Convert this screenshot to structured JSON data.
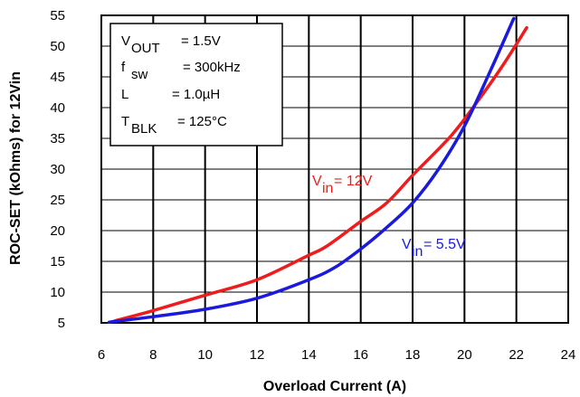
{
  "chart_data": {
    "type": "line",
    "xlabel": "Overload Current (A)",
    "ylabel": "ROC-SET (kOhms) for 12Vin",
    "xlim": [
      6,
      24
    ],
    "ylim": [
      5,
      55
    ],
    "xticks": [
      "6",
      "8",
      "10",
      "12",
      "14",
      "16",
      "18",
      "20",
      "22",
      "24"
    ],
    "yticks": [
      "5",
      "10",
      "15",
      "20",
      "25",
      "30",
      "35",
      "40",
      "45",
      "50",
      "55"
    ],
    "grid": true,
    "conditions": [
      {
        "main": "V",
        "sub": "OUT",
        "rest": "= 1.5V"
      },
      {
        "main": "f",
        "sub": "sw",
        "rest": "= 300kHz"
      },
      {
        "main": "L",
        "sub": "",
        "rest": "= 1.0µH"
      },
      {
        "main": "T",
        "sub": "BLK",
        "rest": "= 125°C"
      }
    ],
    "series": [
      {
        "label_main": "V",
        "label_sub": "in",
        "label_rest": " = 12V",
        "color": "#ee1c1c",
        "x": [
          6.5,
          8,
          10,
          12,
          14,
          14.7,
          16,
          17,
          18,
          19.5,
          20.5,
          21.5,
          22.4
        ],
        "y": [
          5.3,
          7,
          9.5,
          12,
          16,
          17.5,
          21.5,
          24.5,
          29,
          35.5,
          41,
          47,
          53
        ]
      },
      {
        "label_main": "V",
        "label_sub": "in",
        "label_rest": " = 5.5V",
        "color": "#1a1adc",
        "x": [
          6.3,
          8,
          10,
          12,
          14,
          15,
          16,
          17,
          18,
          19,
          20,
          21,
          21.9
        ],
        "y": [
          5.1,
          6,
          7.2,
          9,
          12,
          14,
          17,
          20.5,
          24.5,
          30,
          37,
          46,
          54.5
        ]
      }
    ]
  }
}
